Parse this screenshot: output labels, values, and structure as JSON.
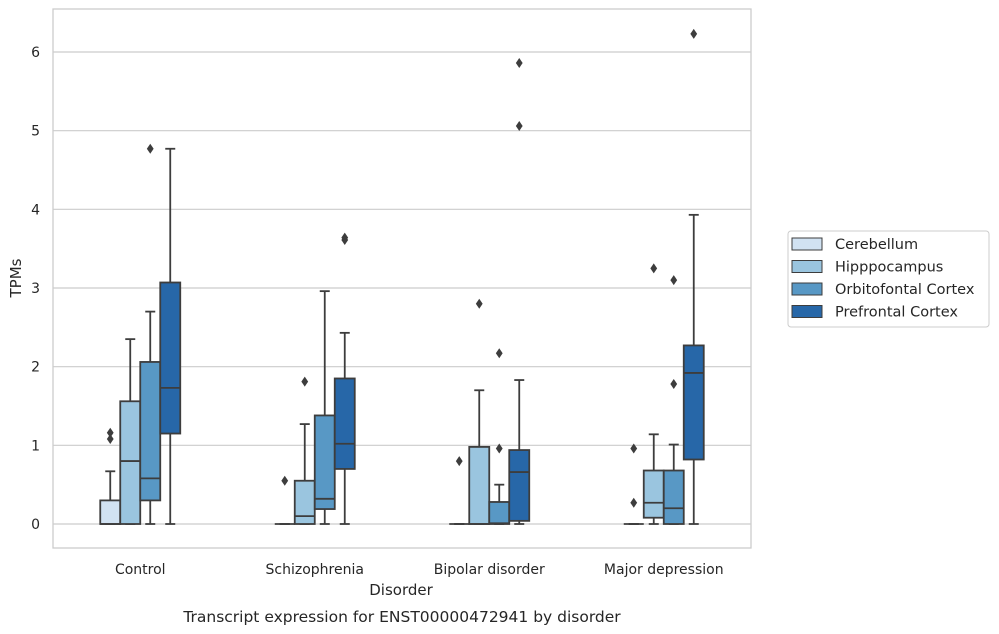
{
  "caption": "Transcript expression for ENST00000472941 by disorder",
  "chart_data": {
    "type": "box",
    "xlabel": "Disorder",
    "ylabel": "TPMs",
    "ylim": [
      -0.3,
      6.55
    ],
    "yticks": [
      0,
      1,
      2,
      3,
      4,
      5,
      6
    ],
    "grid": true,
    "legend_position": "right",
    "categories": [
      "Control",
      "Schizophrenia",
      "Bipolar disorder",
      "Major depression"
    ],
    "series": [
      {
        "name": "Cerebellum",
        "color": "#d1e2f2",
        "boxes": [
          {
            "low": 0,
            "q1": 0,
            "median": 0,
            "q3": 0.3,
            "high": 0.67,
            "outliers": [
              1.08,
              1.16
            ]
          },
          {
            "low": 0,
            "q1": 0,
            "median": 0,
            "q3": 0,
            "high": 0,
            "outliers": [
              0.55
            ]
          },
          {
            "low": 0,
            "q1": 0,
            "median": 0,
            "q3": 0,
            "high": 0,
            "outliers": [
              0.8
            ]
          },
          {
            "low": 0,
            "q1": 0,
            "median": 0,
            "q3": 0,
            "high": 0,
            "outliers": [
              0.27,
              0.96
            ]
          }
        ]
      },
      {
        "name": "Hipppocampus",
        "color": "#9ac5df",
        "boxes": [
          {
            "low": 0,
            "q1": 0,
            "median": 0.8,
            "q3": 1.56,
            "high": 2.35,
            "outliers": []
          },
          {
            "low": 0,
            "q1": 0,
            "median": 0.1,
            "q3": 0.55,
            "high": 1.27,
            "outliers": [
              1.81
            ]
          },
          {
            "low": 0,
            "q1": 0,
            "median": 0,
            "q3": 0.98,
            "high": 1.7,
            "outliers": [
              2.8
            ]
          },
          {
            "low": 0,
            "q1": 0.08,
            "median": 0.27,
            "q3": 0.68,
            "high": 1.14,
            "outliers": [
              3.25
            ]
          }
        ]
      },
      {
        "name": "Orbitofontal Cortex",
        "color": "#5898c5",
        "boxes": [
          {
            "low": 0,
            "q1": 0.3,
            "median": 0.58,
            "q3": 2.06,
            "high": 2.7,
            "outliers": [
              4.77
            ]
          },
          {
            "low": 0,
            "q1": 0.19,
            "median": 0.32,
            "q3": 1.38,
            "high": 2.96,
            "outliers": []
          },
          {
            "low": 0,
            "q1": 0,
            "median": 0.01,
            "q3": 0.28,
            "high": 0.5,
            "outliers": [
              0.96,
              2.17
            ]
          },
          {
            "low": 0,
            "q1": 0,
            "median": 0.2,
            "q3": 0.68,
            "high": 1.01,
            "outliers": [
              1.78,
              3.1
            ]
          }
        ]
      },
      {
        "name": "Prefrontal Cortex",
        "color": "#2767a8",
        "boxes": [
          {
            "low": 0,
            "q1": 1.15,
            "median": 1.73,
            "q3": 3.07,
            "high": 4.77,
            "outliers": []
          },
          {
            "low": 0,
            "q1": 0.7,
            "median": 1.02,
            "q3": 1.85,
            "high": 2.43,
            "outliers": [
              3.61,
              3.64
            ]
          },
          {
            "low": 0,
            "q1": 0.04,
            "median": 0.66,
            "q3": 0.94,
            "high": 1.83,
            "outliers": [
              5.06,
              5.86
            ]
          },
          {
            "low": 0,
            "q1": 0.82,
            "median": 1.92,
            "q3": 2.27,
            "high": 3.93,
            "outliers": [
              6.23
            ]
          }
        ]
      }
    ]
  }
}
